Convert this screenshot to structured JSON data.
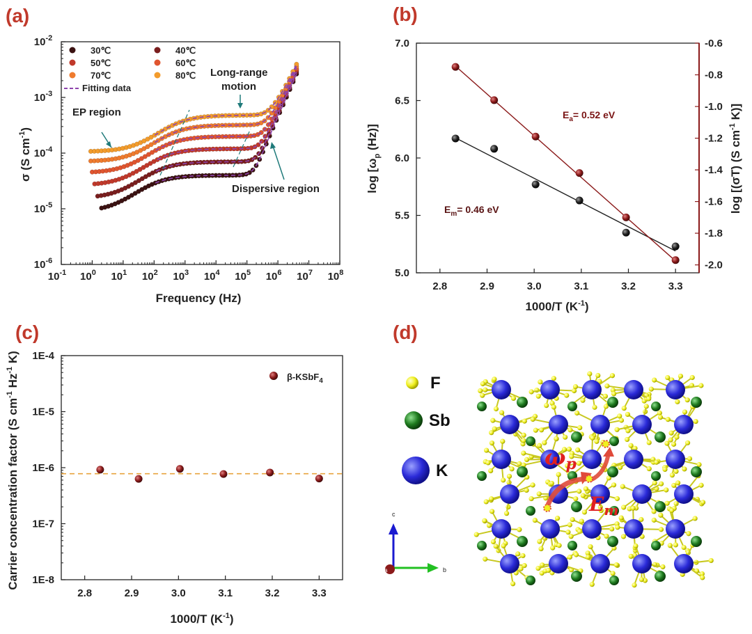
{
  "colors": {
    "panel_label": "#c0392b",
    "line_b": "#2b2b2b",
    "line_ea": "#8b1a1a",
    "fit": "#8e44ad",
    "dash": "#e8a33d",
    "f_atom": "#f0f020",
    "sb_atom": "#1e7a1e",
    "k_atom": "#2a2ad8",
    "arrow": "#e04a3a"
  },
  "chart_data": [
    {
      "panel": "(a)",
      "type": "scatter",
      "xlabel": "Frequency (Hz)",
      "ylabel": "σ (S cm",
      "ylabel_sup": "-1",
      "ylabel_tail": ")",
      "x_scale": "log",
      "y_scale": "log",
      "xlim": [
        0.1,
        100000000
      ],
      "ylim": [
        1e-06,
        0.01
      ],
      "x_ticks": [
        {
          "value": 0.1,
          "base": "10",
          "exp": "-1"
        },
        {
          "value": 1,
          "base": "10",
          "exp": "0"
        },
        {
          "value": 10,
          "base": "10",
          "exp": "1"
        },
        {
          "value": 100,
          "base": "10",
          "exp": "2"
        },
        {
          "value": 1000,
          "base": "10",
          "exp": "3"
        },
        {
          "value": 10000,
          "base": "10",
          "exp": "4"
        },
        {
          "value": 100000,
          "base": "10",
          "exp": "5"
        },
        {
          "value": 1000000,
          "base": "10",
          "exp": "6"
        },
        {
          "value": 10000000,
          "base": "10",
          "exp": "7"
        },
        {
          "value": 100000000,
          "base": "10",
          "exp": "8"
        }
      ],
      "y_ticks": [
        {
          "value": 1e-06,
          "base": "10",
          "exp": "-6"
        },
        {
          "value": 1e-05,
          "base": "10",
          "exp": "-5"
        },
        {
          "value": 0.0001,
          "base": "10",
          "exp": "-4"
        },
        {
          "value": 0.001,
          "base": "10",
          "exp": "-3"
        },
        {
          "value": 0.01,
          "base": "10",
          "exp": "-2"
        }
      ],
      "legend": [
        {
          "label": "30℃",
          "color": "#3b1212"
        },
        {
          "label": "40℃",
          "color": "#7a1e1e"
        },
        {
          "label": "50℃",
          "color": "#c0392b"
        },
        {
          "label": "60℃",
          "color": "#e0552f"
        },
        {
          "label": "70℃",
          "color": "#ef7b2e"
        },
        {
          "label": "80℃",
          "color": "#f39c2c"
        }
      ],
      "fit_label": "Fitting data",
      "series": [
        {
          "name": "30℃",
          "color": "#3b1212",
          "sdc": 4e-05,
          "fmin": 2,
          "fc": 55,
          "fhi": 250000,
          "tail": 0.0026
        },
        {
          "name": "40℃",
          "color": "#7a1e1e",
          "sdc": 7e-05,
          "fmin": 1.5,
          "fc": 80,
          "fhi": 300000,
          "tail": 0.0028
        },
        {
          "name": "50℃",
          "color": "#c0392b",
          "sdc": 0.00012,
          "fmin": 1.2,
          "fc": 110,
          "fhi": 350000,
          "tail": 0.003
        },
        {
          "name": "60℃",
          "color": "#e0552f",
          "sdc": 0.0002,
          "fmin": 1,
          "fc": 150,
          "fhi": 400000,
          "tail": 0.0031
        },
        {
          "name": "70℃",
          "color": "#ef7b2e",
          "sdc": 0.00032,
          "fmin": 0.9,
          "fc": 220,
          "fhi": 450000,
          "tail": 0.0033
        },
        {
          "name": "80℃",
          "color": "#f39c2c",
          "sdc": 0.00048,
          "fmin": 0.9,
          "fc": 300,
          "fhi": 500000,
          "tail": 0.0035
        }
      ],
      "annotations": {
        "ep": "EP region",
        "longrange1": "Long-range",
        "longrange2": "motion",
        "dispersive": "Dispersive region"
      }
    },
    {
      "panel": "(b)",
      "type": "scatter",
      "xlabel": "1000/T (K",
      "xlabel_sup": "-1",
      "xlabel_tail": ")",
      "ylabel_left": "log [ω",
      "ylabel_left_sub": "p",
      "ylabel_left_tail": " (Hz)]",
      "ylabel_right": "log [(σT) (S cm",
      "ylabel_right_sup": "-1",
      "ylabel_right_tail": " K)]",
      "xlim": [
        2.75,
        3.35
      ],
      "ylim_left": [
        5.0,
        7.0
      ],
      "ylim_right": [
        -2.05,
        -0.6
      ],
      "x_ticks": [
        "2.8",
        "2.9",
        "3.0",
        "3.1",
        "3.2",
        "3.3"
      ],
      "y_ticks_left": [
        "5.0",
        "5.5",
        "6.0",
        "6.5",
        "7.0"
      ],
      "y_ticks_right": [
        "-2.0",
        "-1.8",
        "-1.6",
        "-1.4",
        "-1.2",
        "-1.0",
        "-0.8",
        "-0.6"
      ],
      "x": [
        2.833,
        2.915,
        3.003,
        3.096,
        3.195,
        3.3
      ],
      "series": [
        {
          "axis": "left",
          "color": "#222",
          "values": [
            6.17,
            6.08,
            5.77,
            5.63,
            5.35,
            5.23
          ],
          "fit": [
            6.175,
            5.19
          ]
        },
        {
          "axis": "right",
          "color": "#8b1a1a",
          "values": [
            -0.75,
            -0.96,
            -1.19,
            -1.42,
            -1.7,
            -1.97
          ],
          "fit": [
            -0.745,
            -1.975
          ]
        }
      ],
      "em_label": "E",
      "em_sub": "m",
      "em_tail": "= 0.46 eV",
      "ea_label": "E",
      "ea_sub": "a",
      "ea_tail": "= 0.52 eV"
    },
    {
      "panel": "(c)",
      "type": "scatter",
      "xlabel": "1000/T (K",
      "xlabel_sup": "-1",
      "xlabel_tail": ")",
      "ylabel": "Carrier concentration factor (S cm",
      "ylabel_sup1": "-1",
      "ylabel_mid": " Hz",
      "ylabel_sup2": "-1",
      "ylabel_tail": " K)",
      "y_scale": "log",
      "xlim": [
        2.75,
        3.35
      ],
      "ylim": [
        1e-08,
        0.0001
      ],
      "x_ticks": [
        "2.8",
        "2.9",
        "3.0",
        "3.1",
        "3.2",
        "3.3"
      ],
      "y_ticks": [
        {
          "value": 0.0001,
          "label": "1E-4"
        },
        {
          "value": 1e-05,
          "label": "1E-5"
        },
        {
          "value": 1e-06,
          "label": "1E-6"
        },
        {
          "value": 1e-07,
          "label": "1E-7"
        },
        {
          "value": 1e-08,
          "label": "1E-8"
        }
      ],
      "x": [
        2.833,
        2.915,
        3.003,
        3.096,
        3.195,
        3.3
      ],
      "values": [
        9.2e-07,
        6.3e-07,
        9.5e-07,
        7.7e-07,
        8.2e-07,
        6.4e-07
      ],
      "mean_line": 7.8e-07,
      "legend_label": "β-KSbF",
      "legend_sub": "4"
    }
  ],
  "panel_d": {
    "label": "(d)",
    "legend": [
      {
        "label": "F"
      },
      {
        "label": "Sb"
      },
      {
        "label": "K"
      }
    ],
    "omega": "ω",
    "omega_sub": "p",
    "em": "E",
    "em_sub": "m",
    "axis_c": "c",
    "axis_b": "b",
    "axis_a": "a"
  }
}
